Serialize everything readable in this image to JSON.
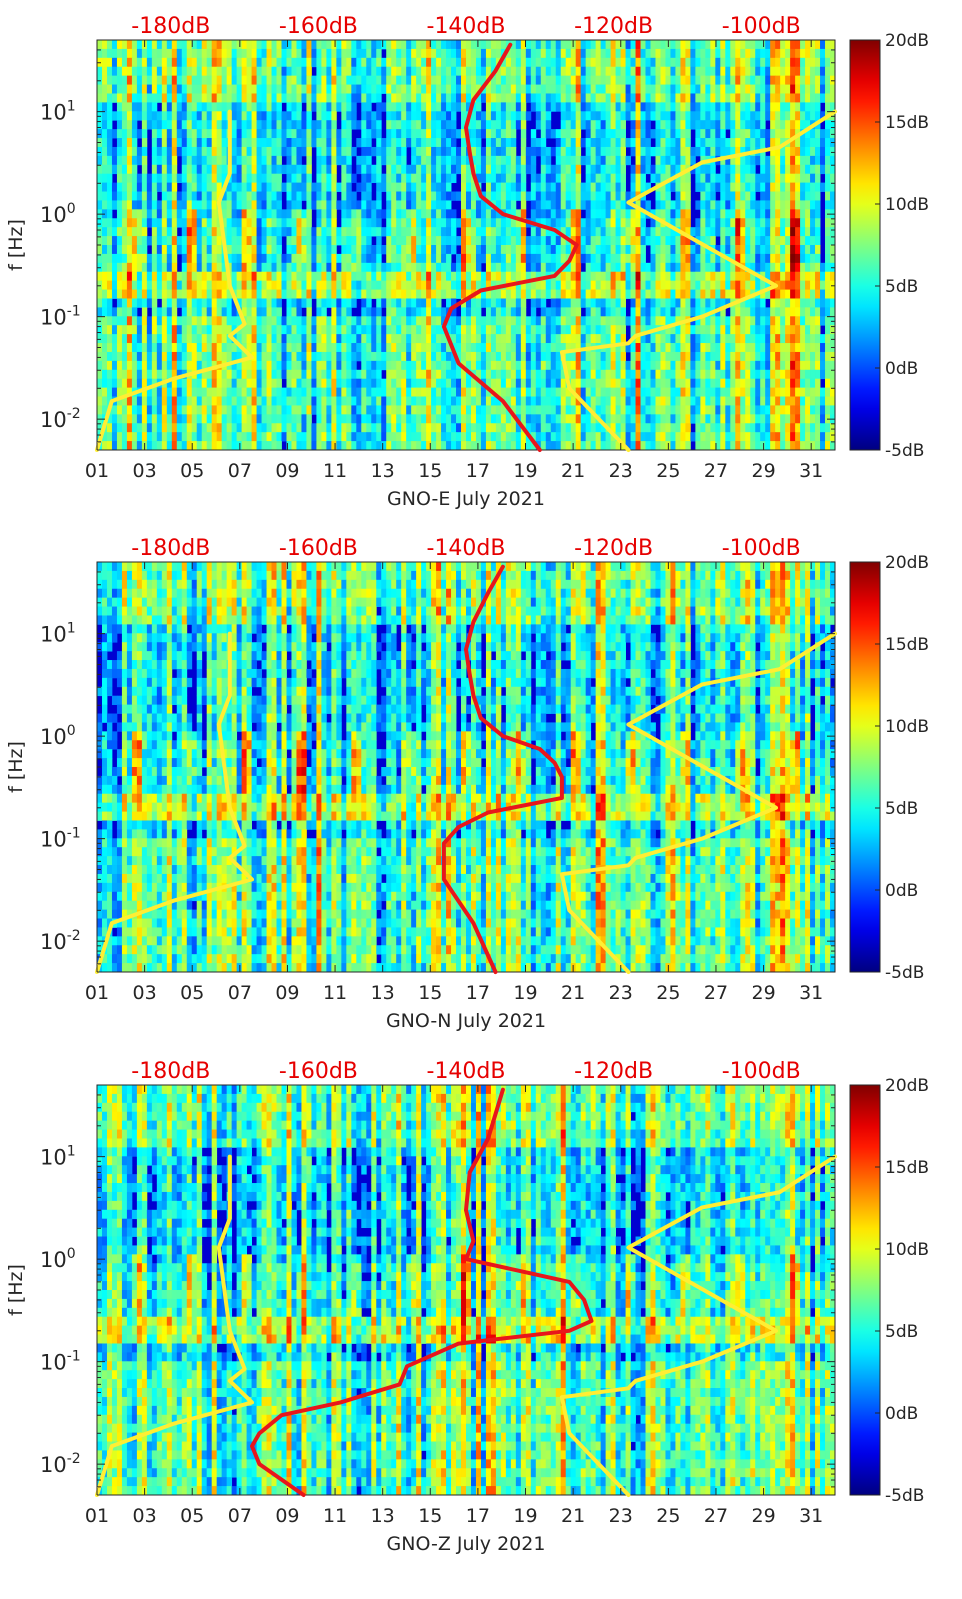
{
  "colors": {
    "model_line": "#ffee33",
    "psd_line": "#e8161b",
    "top_axis_text": "#e60000"
  },
  "chart_data": [
    {
      "type": "heatmap",
      "station": "GNO-E",
      "xlabel": "GNO-E July 2021",
      "ylabel": "f [Hz]",
      "x_ticks": [
        "01",
        "03",
        "05",
        "07",
        "09",
        "11",
        "13",
        "15",
        "17",
        "19",
        "21",
        "23",
        "25",
        "27",
        "29",
        "31"
      ],
      "x_range_days": [
        1,
        32
      ],
      "y_scale": "log",
      "y_range_hz": [
        0.005,
        50
      ],
      "y_ticks": [
        {
          "value": 0.01,
          "base": "10",
          "exp": "-2"
        },
        {
          "value": 0.1,
          "base": "10",
          "exp": "-1"
        },
        {
          "value": 1,
          "base": "10",
          "exp": "0"
        },
        {
          "value": 10,
          "base": "10",
          "exp": "1"
        }
      ],
      "top_axis_labels": [
        "-180dB",
        "-160dB",
        "-140dB",
        "-120dB",
        "-100dB"
      ],
      "top_axis_range_db": [
        -190,
        -90
      ],
      "colorbar_labels": [
        "20dB",
        "15dB",
        "10dB",
        "5dB",
        "0dB",
        "-5dB"
      ],
      "colorbar_range_db": [
        -5,
        20
      ],
      "series": [
        {
          "role": "noise-model-low",
          "x_db": [
            -190,
            -188,
            -179.5,
            -169,
            -172,
            -170,
            -172,
            -173.5,
            -172,
            -172
          ],
          "y_hz": [
            0.005,
            0.015,
            0.025,
            0.04,
            0.065,
            0.085,
            0.2,
            1.3,
            2.5,
            10
          ]
        },
        {
          "role": "noise-model-high",
          "x_db": [
            -118,
            -126,
            -127,
            -118,
            -117.5,
            -117,
            -108,
            -98,
            -118,
            -108,
            -97.5,
            -90
          ],
          "y_hz": [
            0.005,
            0.02,
            0.045,
            0.055,
            0.06,
            0.065,
            0.1,
            0.2,
            1.3,
            3.2,
            4.5,
            10
          ]
        },
        {
          "role": "psd-median",
          "x_db": [
            -130,
            -135,
            -141,
            -143,
            -142,
            -138,
            -128,
            -126,
            -125,
            -128,
            -135,
            -138,
            -139,
            -139.5,
            -140,
            -139,
            -136,
            -134
          ],
          "y_hz": [
            0.005,
            0.015,
            0.035,
            0.08,
            0.12,
            0.18,
            0.25,
            0.35,
            0.5,
            0.7,
            1.0,
            1.5,
            2.5,
            4,
            7,
            13,
            25,
            45
          ]
        }
      ]
    },
    {
      "type": "heatmap",
      "station": "GNO-N",
      "xlabel": "GNO-N July 2021",
      "ylabel": "f [Hz]",
      "x_ticks": [
        "01",
        "03",
        "05",
        "07",
        "09",
        "11",
        "13",
        "15",
        "17",
        "19",
        "21",
        "23",
        "25",
        "27",
        "29",
        "31"
      ],
      "x_range_days": [
        1,
        32
      ],
      "y_scale": "log",
      "y_range_hz": [
        0.005,
        50
      ],
      "y_ticks": [
        {
          "value": 0.01,
          "base": "10",
          "exp": "-2"
        },
        {
          "value": 0.1,
          "base": "10",
          "exp": "-1"
        },
        {
          "value": 1,
          "base": "10",
          "exp": "0"
        },
        {
          "value": 10,
          "base": "10",
          "exp": "1"
        }
      ],
      "top_axis_labels": [
        "-180dB",
        "-160dB",
        "-140dB",
        "-120dB",
        "-100dB"
      ],
      "top_axis_range_db": [
        -190,
        -90
      ],
      "colorbar_labels": [
        "20dB",
        "15dB",
        "10dB",
        "5dB",
        "0dB",
        "-5dB"
      ],
      "colorbar_range_db": [
        -5,
        20
      ],
      "series": [
        {
          "role": "noise-model-low",
          "x_db": [
            -190,
            -188,
            -179.5,
            -169,
            -172,
            -170,
            -172,
            -173.5,
            -172,
            -172
          ],
          "y_hz": [
            0.005,
            0.015,
            0.025,
            0.04,
            0.065,
            0.085,
            0.2,
            1.3,
            2.5,
            10
          ]
        },
        {
          "role": "noise-model-high",
          "x_db": [
            -118,
            -126,
            -127,
            -118,
            -117.5,
            -117,
            -108,
            -98,
            -118,
            -108,
            -97.5,
            -90
          ],
          "y_hz": [
            0.005,
            0.02,
            0.045,
            0.055,
            0.06,
            0.065,
            0.1,
            0.2,
            1.3,
            3.2,
            4.5,
            10
          ]
        },
        {
          "role": "psd-median",
          "x_db": [
            -136,
            -139,
            -143,
            -143,
            -141,
            -137,
            -127,
            -127,
            -128,
            -130,
            -135,
            -138,
            -139,
            -139.5,
            -140,
            -139,
            -137,
            -135
          ],
          "y_hz": [
            0.005,
            0.015,
            0.04,
            0.09,
            0.13,
            0.18,
            0.25,
            0.4,
            0.55,
            0.75,
            1.0,
            1.5,
            2.5,
            4,
            7,
            13,
            25,
            45
          ]
        }
      ]
    },
    {
      "type": "heatmap",
      "station": "GNO-Z",
      "xlabel": "GNO-Z July 2021",
      "ylabel": "f [Hz]",
      "x_ticks": [
        "01",
        "03",
        "05",
        "07",
        "09",
        "11",
        "13",
        "15",
        "17",
        "19",
        "21",
        "23",
        "25",
        "27",
        "29",
        "31"
      ],
      "x_range_days": [
        1,
        32
      ],
      "y_scale": "log",
      "y_range_hz": [
        0.005,
        50
      ],
      "y_ticks": [
        {
          "value": 0.01,
          "base": "10",
          "exp": "-2"
        },
        {
          "value": 0.1,
          "base": "10",
          "exp": "-1"
        },
        {
          "value": 1,
          "base": "10",
          "exp": "0"
        },
        {
          "value": 10,
          "base": "10",
          "exp": "1"
        }
      ],
      "top_axis_labels": [
        "-180dB",
        "-160dB",
        "-140dB",
        "-120dB",
        "-100dB"
      ],
      "top_axis_range_db": [
        -190,
        -90
      ],
      "colorbar_labels": [
        "20dB",
        "15dB",
        "10dB",
        "5dB",
        "0dB",
        "-5dB"
      ],
      "colorbar_range_db": [
        -5,
        20
      ],
      "series": [
        {
          "role": "noise-model-low",
          "x_db": [
            -190,
            -188,
            -179.5,
            -169,
            -172,
            -170,
            -172,
            -173.5,
            -172,
            -172
          ],
          "y_hz": [
            0.005,
            0.015,
            0.025,
            0.04,
            0.065,
            0.085,
            0.2,
            1.3,
            2.5,
            10
          ]
        },
        {
          "role": "noise-model-high",
          "x_db": [
            -118,
            -126,
            -127,
            -118,
            -117.5,
            -117,
            -108,
            -98,
            -118,
            -108,
            -97.5,
            -90
          ],
          "y_hz": [
            0.005,
            0.02,
            0.045,
            0.055,
            0.06,
            0.065,
            0.1,
            0.2,
            1.3,
            3.2,
            4.5,
            10
          ]
        },
        {
          "role": "psd-median",
          "x_db": [
            -162,
            -168,
            -169,
            -168,
            -165,
            -157,
            -149,
            -148,
            -141,
            -126,
            -123,
            -124,
            -126,
            -140,
            -139,
            -140,
            -139.5,
            -137,
            -135
          ],
          "y_hz": [
            0.005,
            0.01,
            0.015,
            0.02,
            0.03,
            0.04,
            0.06,
            0.09,
            0.15,
            0.2,
            0.25,
            0.4,
            0.6,
            1.0,
            1.5,
            3,
            7,
            15,
            45
          ]
        }
      ]
    }
  ]
}
